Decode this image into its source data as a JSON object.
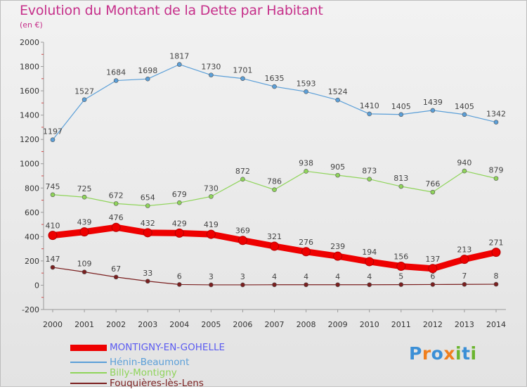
{
  "title": "Evolution du Montant de la Dette par Habitant",
  "subtitle": "(en €)",
  "logo": {
    "letters": [
      {
        "char": "P",
        "color": "#3b8fd6"
      },
      {
        "char": "r",
        "color": "#f07f1d"
      },
      {
        "char": "o",
        "color": "#3b8fd6"
      },
      {
        "char": "x",
        "color": "#f07f1d"
      },
      {
        "char": "i",
        "color": "#6bb52f"
      },
      {
        "char": "t",
        "color": "#3b8fd6"
      },
      {
        "char": "i",
        "color": "#6bb52f"
      }
    ]
  },
  "chart_data": {
    "type": "line",
    "x": [
      "2000",
      "2001",
      "2002",
      "2003",
      "2004",
      "2005",
      "2006",
      "2007",
      "2008",
      "2009",
      "2010",
      "2011",
      "2012",
      "2013",
      "2014"
    ],
    "ylim": [
      -200,
      2000
    ],
    "yticks": [
      -200,
      0,
      200,
      400,
      600,
      800,
      1000,
      1200,
      1400,
      1600,
      1800,
      2000
    ],
    "grid": false,
    "legend_position": "bottom-left",
    "series": [
      {
        "name": "MONTIGNY-EN-GOHELLE",
        "color": "#ee0000",
        "label_color": "#5b5bf0",
        "width": 9,
        "marker_r": 6,
        "values": [
          410,
          439,
          476,
          432,
          429,
          419,
          369,
          321,
          276,
          239,
          194,
          156,
          137,
          213,
          271
        ]
      },
      {
        "name": "Hénin-Beaumont",
        "color": "#5b9fd8",
        "label_color": "#5b9fd8",
        "width": 1.2,
        "marker_r": 3,
        "values": [
          1197,
          1527,
          1684,
          1698,
          1817,
          1730,
          1701,
          1635,
          1593,
          1524,
          1410,
          1405,
          1439,
          1405,
          1342
        ]
      },
      {
        "name": "Billy-Montigny",
        "color": "#8fd45a",
        "label_color": "#8fd45a",
        "width": 1.2,
        "marker_r": 3,
        "values": [
          745,
          725,
          672,
          654,
          679,
          730,
          872,
          786,
          938,
          905,
          873,
          813,
          766,
          940,
          879
        ]
      },
      {
        "name": "Fouquières-lès-Lens",
        "color": "#7a1f1f",
        "label_color": "#7a1f1f",
        "width": 1.2,
        "marker_r": 3,
        "values": [
          147,
          109,
          67,
          33,
          6,
          3,
          3,
          4,
          4,
          4,
          4,
          5,
          6,
          7,
          8
        ]
      }
    ]
  }
}
